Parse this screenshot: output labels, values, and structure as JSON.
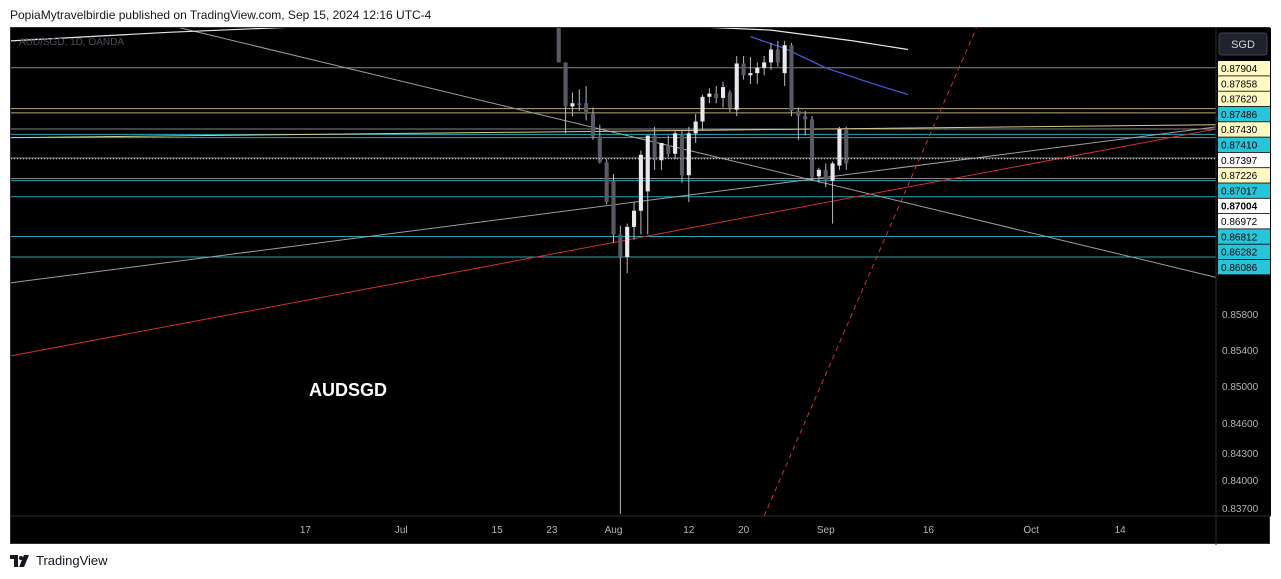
{
  "header": {
    "published": "PopiaMytravelbirdie published on TradingView.com, Sep 15, 2024 12:16 UTC-4"
  },
  "footer": {
    "logo_text": "TradingView",
    "logo_icon": "tradingview-logo-icon"
  },
  "chart_data": {
    "type": "candlestick",
    "symbol_legend": "AUD/SGD, 1D, OANDA",
    "watermark": "AUDSGD",
    "currency_button": "SGD",
    "y_range": [
      0.8368,
      0.8822
    ],
    "x_range_days": [
      -43,
      133
    ],
    "x_ticks": [
      {
        "d": 0,
        "label": "17"
      },
      {
        "d": 14,
        "label": "Jul"
      },
      {
        "d": 28,
        "label": "15"
      },
      {
        "d": 36,
        "label": "23"
      },
      {
        "d": 45,
        "label": "Aug"
      },
      {
        "d": 56,
        "label": "12"
      },
      {
        "d": 64,
        "label": "20"
      },
      {
        "d": 76,
        "label": "Sep"
      },
      {
        "d": 91,
        "label": "16"
      },
      {
        "d": 106,
        "label": "Oct"
      },
      {
        "d": 119,
        "label": "14"
      }
    ],
    "y_ticks": [
      "0.85800",
      "0.85400",
      "0.85000",
      "0.84600",
      "0.84300",
      "0.84000",
      "0.83700"
    ],
    "price_labels": [
      {
        "value": "0.87904",
        "bg": "#fff9c4",
        "fg": "#000000"
      },
      {
        "value": "0.87858",
        "bg": "#fff9c4",
        "fg": "#000000"
      },
      {
        "value": "0.87620",
        "bg": "#fff9c4",
        "fg": "#000000"
      },
      {
        "value": "0.87486",
        "bg": "#26c6da",
        "fg": "#000000"
      },
      {
        "value": "0.87430",
        "bg": "#fff9c4",
        "fg": "#000000"
      },
      {
        "value": "0.87410",
        "bg": "#26c6da",
        "fg": "#000000"
      },
      {
        "value": "0.87397",
        "bg": "#ffffff",
        "fg": "#000000"
      },
      {
        "value": "0.87226",
        "bg": "#fff9c4",
        "fg": "#000000"
      },
      {
        "value": "0.87017",
        "bg": "#26c6da",
        "fg": "#000000"
      },
      {
        "value": "0.87004",
        "bg": "#ffffff",
        "fg": "#000000"
      },
      {
        "value": "0.86972",
        "bg": "#ffffff",
        "fg": "#000000"
      },
      {
        "value": "0.86812",
        "bg": "#26c6da",
        "fg": "#000000"
      },
      {
        "value": "0.86282",
        "bg": "#26c6da",
        "fg": "#000000"
      },
      {
        "value": "0.86086",
        "bg": "#26c6da",
        "fg": "#000000"
      }
    ],
    "horizontal_lines": [
      {
        "value": 0.8785,
        "color": "#9e9e9e"
      },
      {
        "value": 0.8747,
        "color": "#d8c88a"
      },
      {
        "value": 0.8743,
        "color": "#d8c88a"
      },
      {
        "value": 0.8728,
        "color": "#9e9e9e"
      },
      {
        "value": 0.8723,
        "color": "#26c6da"
      },
      {
        "value": 0.872,
        "color": "#26c6da"
      },
      {
        "value": 0.8701,
        "color": "#9e9e9e"
      },
      {
        "value": 0.8682,
        "color": "#9e9e9e"
      },
      {
        "value": 0.868,
        "color": "#26c6da"
      },
      {
        "value": 0.8665,
        "color": "#26c6da"
      },
      {
        "value": 0.8628,
        "color": "#26c6da"
      },
      {
        "value": 0.8609,
        "color": "#26c6da"
      }
    ],
    "trend_lines": [
      {
        "d1": -43,
        "v1": 0.886,
        "d2": 133,
        "v2": 0.859,
        "color": "#9e9e9e",
        "dash": false
      },
      {
        "d1": -43,
        "v1": 0.8585,
        "d2": 133,
        "v2": 0.873,
        "color": "#9e9e9e",
        "dash": false
      },
      {
        "d1": -43,
        "v1": 0.8517,
        "d2": 133,
        "v2": 0.8728,
        "color": "#d32f2f",
        "dash": false
      },
      {
        "d1": -43,
        "v1": 0.872,
        "d2": 133,
        "v2": 0.8732,
        "color": "#d8c88a",
        "dash": false
      },
      {
        "d1": 67,
        "v1": 0.8368,
        "d2": 98,
        "v2": 0.8822,
        "color": "#d32f2f",
        "dash": true
      }
    ],
    "moving_averages": [
      {
        "name": "",
        "color": "#e6e6e6",
        "points": [
          [
            -43,
            0.881
          ],
          [
            -20,
            0.8818
          ],
          [
            10,
            0.8826
          ],
          [
            40,
            0.8828
          ],
          [
            68,
            0.882
          ],
          [
            80,
            0.881
          ],
          [
            88,
            0.8802
          ]
        ]
      },
      {
        "name": "",
        "color": "#3f5fe8",
        "points": [
          [
            65,
            0.8814
          ],
          [
            70,
            0.8803
          ],
          [
            76,
            0.8785
          ],
          [
            82,
            0.8772
          ],
          [
            88,
            0.876
          ]
        ]
      }
    ],
    "candles": [
      {
        "d": 37,
        "o": 0.8835,
        "h": 0.8835,
        "l": 0.879,
        "c": 0.879
      },
      {
        "d": 38,
        "o": 0.879,
        "h": 0.879,
        "l": 0.8724,
        "c": 0.8749
      },
      {
        "d": 39,
        "o": 0.8749,
        "h": 0.8762,
        "l": 0.874,
        "c": 0.8752
      },
      {
        "d": 40,
        "o": 0.8752,
        "h": 0.8765,
        "l": 0.8745,
        "c": 0.875
      },
      {
        "d": 41,
        "o": 0.8752,
        "h": 0.8768,
        "l": 0.8736,
        "c": 0.8742
      },
      {
        "d": 42,
        "o": 0.8742,
        "h": 0.8748,
        "l": 0.8718,
        "c": 0.8721
      },
      {
        "d": 43,
        "o": 0.8721,
        "h": 0.8732,
        "l": 0.8696,
        "c": 0.8697
      },
      {
        "d": 44,
        "o": 0.8697,
        "h": 0.87,
        "l": 0.8658,
        "c": 0.866
      },
      {
        "d": 45,
        "o": 0.868,
        "h": 0.8686,
        "l": 0.8622,
        "c": 0.863
      },
      {
        "d": 46,
        "o": 0.863,
        "h": 0.8638,
        "l": 0.837,
        "c": 0.8609
      },
      {
        "d": 47,
        "o": 0.8609,
        "h": 0.864,
        "l": 0.8594,
        "c": 0.8637
      },
      {
        "d": 48,
        "o": 0.8637,
        "h": 0.866,
        "l": 0.8625,
        "c": 0.8652
      },
      {
        "d": 49,
        "o": 0.8652,
        "h": 0.8708,
        "l": 0.863,
        "c": 0.8704
      },
      {
        "d": 50,
        "o": 0.867,
        "h": 0.8722,
        "l": 0.863,
        "c": 0.8722
      },
      {
        "d": 51,
        "o": 0.8722,
        "h": 0.873,
        "l": 0.869,
        "c": 0.8699
      },
      {
        "d": 52,
        "o": 0.8699,
        "h": 0.8715,
        "l": 0.869,
        "c": 0.8715
      },
      {
        "d": 53,
        "o": 0.8713,
        "h": 0.8722,
        "l": 0.8702,
        "c": 0.8705
      },
      {
        "d": 54,
        "o": 0.8705,
        "h": 0.8726,
        "l": 0.87,
        "c": 0.8724
      },
      {
        "d": 55,
        "o": 0.8723,
        "h": 0.8726,
        "l": 0.8678,
        "c": 0.8685
      },
      {
        "d": 56,
        "o": 0.8685,
        "h": 0.873,
        "l": 0.866,
        "c": 0.8724
      },
      {
        "d": 57,
        "o": 0.8724,
        "h": 0.8742,
        "l": 0.8715,
        "c": 0.8735
      },
      {
        "d": 58,
        "o": 0.8735,
        "h": 0.876,
        "l": 0.8727,
        "c": 0.8758
      },
      {
        "d": 59,
        "o": 0.8758,
        "h": 0.8766,
        "l": 0.8752,
        "c": 0.8761
      },
      {
        "d": 60,
        "o": 0.8761,
        "h": 0.8768,
        "l": 0.8752,
        "c": 0.8757
      },
      {
        "d": 61,
        "o": 0.8757,
        "h": 0.8772,
        "l": 0.8748,
        "c": 0.8767
      },
      {
        "d": 62,
        "o": 0.8762,
        "h": 0.8764,
        "l": 0.8744,
        "c": 0.8748
      },
      {
        "d": 63,
        "o": 0.8746,
        "h": 0.8796,
        "l": 0.874,
        "c": 0.8789
      },
      {
        "d": 64,
        "o": 0.8789,
        "h": 0.8796,
        "l": 0.8774,
        "c": 0.8778
      },
      {
        "d": 65,
        "o": 0.8778,
        "h": 0.8795,
        "l": 0.877,
        "c": 0.878
      },
      {
        "d": 66,
        "o": 0.878,
        "h": 0.879,
        "l": 0.877,
        "c": 0.8785
      },
      {
        "d": 67,
        "o": 0.8785,
        "h": 0.8796,
        "l": 0.8778,
        "c": 0.879
      },
      {
        "d": 68,
        "o": 0.879,
        "h": 0.8808,
        "l": 0.8783,
        "c": 0.8802
      },
      {
        "d": 69,
        "o": 0.8802,
        "h": 0.881,
        "l": 0.8786,
        "c": 0.879
      },
      {
        "d": 70,
        "o": 0.878,
        "h": 0.881,
        "l": 0.8768,
        "c": 0.8806
      },
      {
        "d": 71,
        "o": 0.8806,
        "h": 0.8808,
        "l": 0.874,
        "c": 0.8745
      },
      {
        "d": 72,
        "o": 0.8745,
        "h": 0.8748,
        "l": 0.8718,
        "c": 0.874
      },
      {
        "d": 73,
        "o": 0.874,
        "h": 0.8745,
        "l": 0.8722,
        "c": 0.8737
      },
      {
        "d": 74,
        "o": 0.8737,
        "h": 0.874,
        "l": 0.868,
        "c": 0.8683
      },
      {
        "d": 75,
        "o": 0.8684,
        "h": 0.8692,
        "l": 0.8678,
        "c": 0.869
      },
      {
        "d": 76,
        "o": 0.869,
        "h": 0.8696,
        "l": 0.8674,
        "c": 0.868
      },
      {
        "d": 77,
        "o": 0.868,
        "h": 0.8698,
        "l": 0.864,
        "c": 0.8696
      },
      {
        "d": 78,
        "o": 0.8694,
        "h": 0.873,
        "l": 0.869,
        "c": 0.8728
      },
      {
        "d": 79,
        "o": 0.8728,
        "h": 0.873,
        "l": 0.869,
        "c": 0.8696
      }
    ],
    "bullish_color": "#e8e8ee",
    "bearish_color": "#5a5a66",
    "wick_color": "#b9b9c4"
  }
}
